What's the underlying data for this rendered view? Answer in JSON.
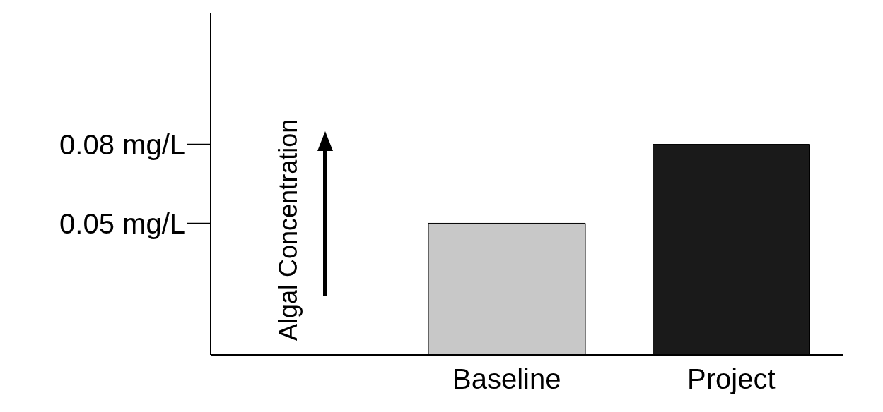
{
  "chart_data": {
    "type": "bar",
    "ylabel": "Algal Concentration",
    "categories": [
      "Baseline",
      "Project"
    ],
    "values": [
      0.05,
      0.08
    ],
    "colors": [
      "#c8c8c8",
      "#1a1a1a"
    ],
    "ylim": [
      0,
      0.13
    ],
    "yticks": [
      {
        "value": 0.05,
        "label": "0.05 mg/L"
      },
      {
        "value": 0.08,
        "label": "0.08 mg/L"
      }
    ],
    "grid": false,
    "legend": false
  }
}
